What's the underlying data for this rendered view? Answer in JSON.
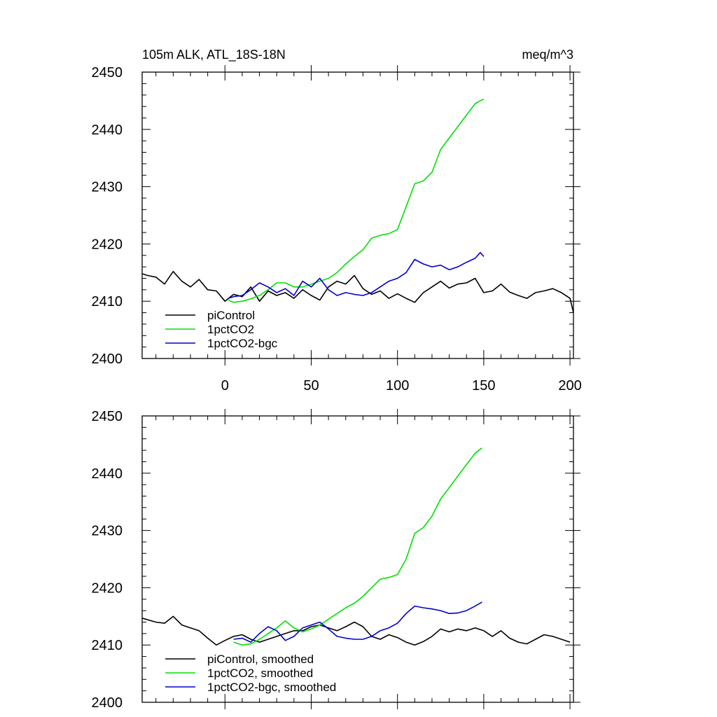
{
  "chart_data": [
    {
      "type": "line",
      "title": "105m ALK, ATL_18S-18N",
      "units": "meq/m^3",
      "xlim": [
        -48,
        202
      ],
      "ylim": [
        2400,
        2450
      ],
      "xticks": [
        0,
        50,
        100,
        150,
        200
      ],
      "yticks": [
        2400,
        2410,
        2420,
        2430,
        2440,
        2450
      ],
      "series": [
        {
          "name": "piControl",
          "color": "#000000",
          "x": [
            -48,
            -45,
            -40,
            -35,
            -30,
            -25,
            -20,
            -15,
            -10,
            -5,
            0,
            5,
            10,
            15,
            20,
            25,
            30,
            35,
            40,
            45,
            50,
            55,
            60,
            65,
            70,
            75,
            80,
            85,
            90,
            95,
            100,
            105,
            110,
            115,
            120,
            125,
            130,
            135,
            140,
            145,
            150,
            155,
            160,
            165,
            170,
            175,
            180,
            185,
            190,
            195,
            200,
            202
          ],
          "y": [
            2414.8,
            2414.5,
            2414.2,
            2413,
            2415.2,
            2413.5,
            2412.5,
            2413.8,
            2412,
            2411.8,
            2410,
            2411.2,
            2410.8,
            2412.5,
            2410,
            2411.8,
            2411,
            2411.5,
            2410.5,
            2412,
            2411,
            2410.2,
            2412.5,
            2413.5,
            2413,
            2414.5,
            2412.2,
            2411.2,
            2411.8,
            2410.5,
            2411.3,
            2410.5,
            2409.8,
            2411.5,
            2412.5,
            2413.5,
            2412.3,
            2413,
            2413.2,
            2414,
            2411.5,
            2411.8,
            2413,
            2411.6,
            2411,
            2410.5,
            2411.5,
            2411.8,
            2412.2,
            2411.5,
            2410.5,
            2408
          ]
        },
        {
          "name": "1pctCO2",
          "color": "#00e000",
          "x": [
            2,
            5,
            10,
            15,
            20,
            25,
            30,
            35,
            40,
            45,
            50,
            55,
            60,
            65,
            70,
            75,
            80,
            85,
            90,
            95,
            100,
            105,
            110,
            115,
            120,
            125,
            130,
            135,
            140,
            145,
            150
          ],
          "y": [
            2410.2,
            2409.8,
            2410,
            2410.4,
            2411,
            2412,
            2413.2,
            2413.2,
            2412.5,
            2412.5,
            2413,
            2413.5,
            2414,
            2415,
            2416.5,
            2417.8,
            2419,
            2421,
            2421.5,
            2421.8,
            2422.5,
            2426.5,
            2430.5,
            2431,
            2432.5,
            2436.5,
            2438.5,
            2440.5,
            2442.5,
            2444.5,
            2445.3
          ]
        },
        {
          "name": "1pctCO2-bgc",
          "color": "#0000cc",
          "x": [
            2,
            5,
            10,
            15,
            20,
            25,
            30,
            35,
            40,
            45,
            50,
            55,
            60,
            65,
            70,
            75,
            80,
            85,
            90,
            95,
            100,
            105,
            110,
            115,
            120,
            125,
            130,
            135,
            140,
            145,
            148,
            150
          ],
          "y": [
            2410.5,
            2410.8,
            2411,
            2412,
            2413.2,
            2412.5,
            2411.5,
            2412.2,
            2411,
            2413.5,
            2412.5,
            2414,
            2412,
            2411,
            2411.5,
            2411.2,
            2411,
            2411.5,
            2412.5,
            2413.5,
            2414,
            2415,
            2417.3,
            2416.5,
            2416,
            2416.3,
            2415.5,
            2416,
            2416.8,
            2417.5,
            2418.5,
            2417.8
          ]
        }
      ],
      "legend": [
        "piControl",
        "1pctCO2",
        "1pctCO2-bgc"
      ],
      "legend_position": "bottom-left"
    },
    {
      "type": "line",
      "title": "",
      "xlim": [
        -48,
        202
      ],
      "ylim": [
        2400,
        2450
      ],
      "yticks": [
        2400,
        2410,
        2420,
        2430,
        2440,
        2450
      ],
      "series": [
        {
          "name": "piControl, smoothed",
          "color": "#000000",
          "x": [
            -48,
            -40,
            -35,
            -30,
            -25,
            -20,
            -15,
            -10,
            -5,
            0,
            5,
            10,
            15,
            20,
            25,
            30,
            35,
            40,
            45,
            50,
            55,
            60,
            65,
            70,
            75,
            80,
            85,
            90,
            95,
            100,
            105,
            110,
            115,
            120,
            125,
            130,
            135,
            140,
            145,
            150,
            155,
            160,
            165,
            170,
            175,
            180,
            185,
            190,
            195,
            200
          ],
          "y": [
            2414.7,
            2414,
            2413.8,
            2415,
            2413.5,
            2413,
            2412.5,
            2411.2,
            2410,
            2410.8,
            2411.5,
            2411.8,
            2411,
            2410.5,
            2411,
            2411.5,
            2412,
            2412.5,
            2412.5,
            2413.2,
            2413.5,
            2413,
            2412.5,
            2413.2,
            2414,
            2413.2,
            2411.5,
            2411,
            2411.8,
            2411.3,
            2410.5,
            2410,
            2410.6,
            2411.5,
            2412.8,
            2412.3,
            2412.8,
            2412.5,
            2413,
            2412.5,
            2411.5,
            2412.5,
            2411.2,
            2410.5,
            2410.2,
            2411,
            2411.8,
            2411.5,
            2411,
            2410.5
          ]
        },
        {
          "name": "1pctCO2, smoothed",
          "color": "#00e000",
          "x": [
            5,
            10,
            15,
            20,
            25,
            30,
            35,
            40,
            45,
            50,
            55,
            60,
            65,
            70,
            75,
            80,
            85,
            90,
            95,
            100,
            105,
            110,
            115,
            120,
            125,
            130,
            135,
            140,
            145,
            149
          ],
          "y": [
            2410.5,
            2410,
            2410.2,
            2411,
            2412,
            2413,
            2414.2,
            2413,
            2412.3,
            2412.8,
            2413.5,
            2414.5,
            2415.5,
            2416.5,
            2417.3,
            2418.5,
            2420,
            2421.5,
            2421.8,
            2422.3,
            2425,
            2429.5,
            2430.5,
            2432.5,
            2435.5,
            2437.5,
            2439.5,
            2441.5,
            2443.5,
            2444.4
          ]
        },
        {
          "name": "1pctCO2-bgc, smoothed",
          "color": "#0000cc",
          "x": [
            5,
            10,
            15,
            20,
            25,
            30,
            35,
            40,
            45,
            50,
            55,
            60,
            65,
            70,
            75,
            80,
            85,
            90,
            95,
            100,
            105,
            110,
            115,
            120,
            125,
            130,
            135,
            140,
            145,
            149
          ],
          "y": [
            2411,
            2411.2,
            2410.5,
            2412,
            2413.2,
            2412.5,
            2410.8,
            2411.5,
            2413,
            2413.5,
            2414,
            2412.8,
            2411.5,
            2411.2,
            2411,
            2411,
            2411.5,
            2412.5,
            2413,
            2413.8,
            2415.5,
            2416.8,
            2416.5,
            2416.3,
            2416,
            2415.5,
            2415.6,
            2416,
            2416.8,
            2417.5
          ]
        }
      ],
      "legend": [
        "piControl, smoothed",
        "1pctCO2, smoothed",
        "1pctCO2-bgc, smoothed"
      ],
      "legend_position": "bottom-left"
    }
  ]
}
